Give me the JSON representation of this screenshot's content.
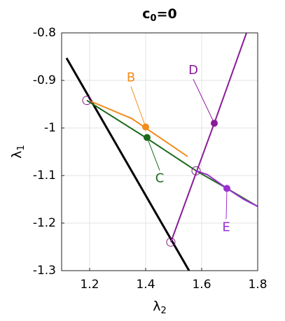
{
  "chart_data": {
    "type": "line",
    "title": [
      "c",
      "0",
      "=0"
    ],
    "xlabel": [
      "λ",
      "2"
    ],
    "ylabel": [
      "λ",
      "1"
    ],
    "xlim": [
      1.1,
      1.8
    ],
    "xticks": [
      1.2,
      1.4,
      1.6,
      1.8
    ],
    "ylim": [
      -1.3,
      -0.8
    ],
    "yticks": [
      -1.3,
      -1.2,
      -1.1,
      -1,
      -0.9,
      -0.8
    ],
    "grid": true,
    "series": [
      {
        "color": "#000000",
        "x": [
          1.1175,
          1.555
        ],
        "values": [
          -0.853,
          -1.3
        ]
      },
      {
        "color": "#1e6b1e",
        "x": [
          1.19,
          1.4,
          1.58,
          1.69,
          1.8
        ],
        "values": [
          -0.942,
          -1.02,
          -1.09,
          -1.127,
          -1.165
        ]
      },
      {
        "color": "#f28c1c",
        "x": [
          1.2,
          1.35,
          1.4,
          1.55
        ],
        "values": [
          -0.943,
          -0.98,
          -1.0,
          -1.06
        ]
      },
      {
        "color": "#8b1a9b",
        "x": [
          1.49,
          1.645,
          1.76
        ],
        "values": [
          -1.24,
          -0.99,
          -0.8
        ]
      },
      {
        "color": "#9b30d0",
        "x": [
          1.58,
          1.62,
          1.69,
          1.75,
          1.8
        ],
        "values": [
          -1.09,
          -1.098,
          -1.127,
          -1.15,
          -1.165
        ]
      }
    ],
    "points": [
      {
        "label": "B",
        "x": 1.4,
        "y": -0.998,
        "color": "#f28c1c"
      },
      {
        "label": "C",
        "x": 1.405,
        "y": -1.02,
        "color": "#1e6b1e"
      },
      {
        "label": "D",
        "x": 1.645,
        "y": -0.99,
        "color": "#8b1a9b"
      },
      {
        "label": "E",
        "x": 1.69,
        "y": -1.127,
        "color": "#9b30d0"
      }
    ],
    "circles": {
      "x": [
        1.19,
        1.58,
        1.49
      ],
      "y": [
        -0.942,
        -1.09,
        -1.24
      ]
    }
  }
}
